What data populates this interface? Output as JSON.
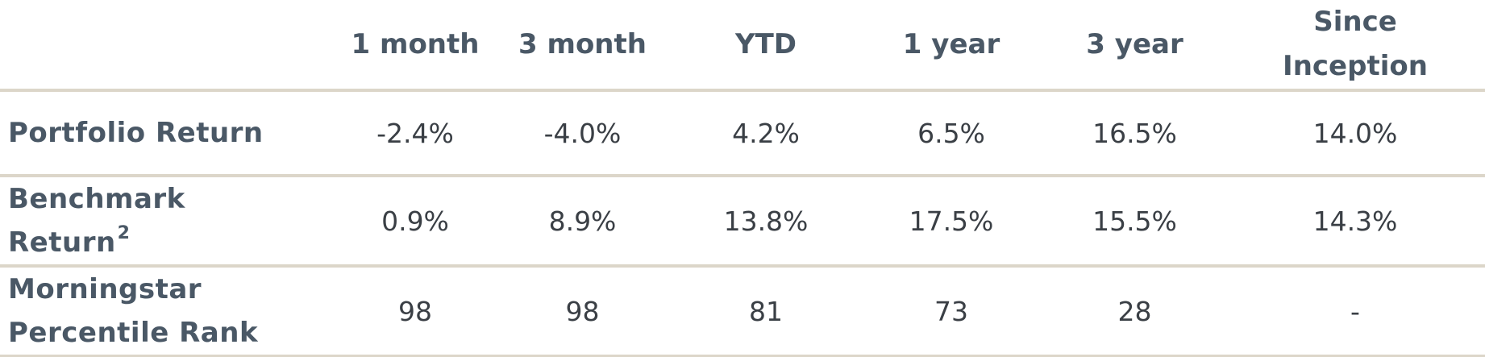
{
  "table": {
    "corner": "",
    "headers": [
      "1 month",
      "3 month",
      "YTD",
      "1 year",
      "3 year",
      "Since Inception"
    ],
    "rows": [
      {
        "label_line1": "Portfolio Return",
        "label_line2": "",
        "footnote": "",
        "values": [
          "-2.4%",
          "-4.0%",
          "4.2%",
          "6.5%",
          "16.5%",
          "14.0%"
        ]
      },
      {
        "label_line1": "Benchmark",
        "label_line2": "Return",
        "footnote": "2",
        "values": [
          "0.9%",
          "8.9%",
          "13.8%",
          "17.5%",
          "15.5%",
          "14.3%"
        ]
      },
      {
        "label_line1": "Morningstar",
        "label_line2": "Percentile Rank",
        "footnote": "",
        "values": [
          "98",
          "98",
          "81",
          "73",
          "28",
          "-"
        ]
      }
    ]
  },
  "colors": {
    "text": "#4a5866",
    "value_text": "#3a3f45",
    "rule": "#dcd6c9",
    "background": "#ffffff"
  }
}
